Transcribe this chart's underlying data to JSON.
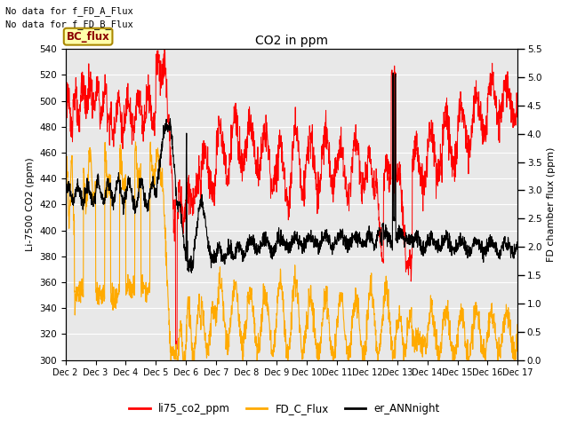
{
  "title": "CO2 in ppm",
  "ylabel_left": "Li-7500 CO2 (ppm)",
  "ylabel_right": "FD chamber flux (ppm)",
  "ylim_left": [
    300,
    540
  ],
  "ylim_right": [
    0.0,
    5.5
  ],
  "yticks_left": [
    300,
    320,
    340,
    360,
    380,
    400,
    420,
    440,
    460,
    480,
    500,
    520,
    540
  ],
  "yticks_right": [
    0.0,
    0.5,
    1.0,
    1.5,
    2.0,
    2.5,
    3.0,
    3.5,
    4.0,
    4.5,
    5.0,
    5.5
  ],
  "xticklabels": [
    "Dec 2",
    "Dec 3",
    "Dec 4",
    "Dec 5",
    "Dec 6",
    "Dec 7",
    "Dec 8",
    "Dec 9",
    "Dec 10",
    "Dec 11",
    "Dec 12",
    "Dec 13",
    "Dec 14",
    "Dec 15",
    "Dec 16",
    "Dec 17"
  ],
  "text_nofdata1": "No data for f_FD_A_Flux",
  "text_nofdata2": "No data for f_FD_B_Flux",
  "annotation_bc": "BC_flux",
  "legend_labels": [
    "li75_co2_ppm",
    "FD_C_Flux",
    "er_ANNnight"
  ],
  "legend_colors": [
    "#ff0000",
    "#ffaa00",
    "#000000"
  ],
  "color_red": "#ff0000",
  "color_orange": "#ffaa00",
  "color_black": "#000000",
  "bg_color": "#e8e8e8",
  "grid_color": "#ffffff",
  "figsize": [
    6.4,
    4.8
  ],
  "dpi": 100
}
